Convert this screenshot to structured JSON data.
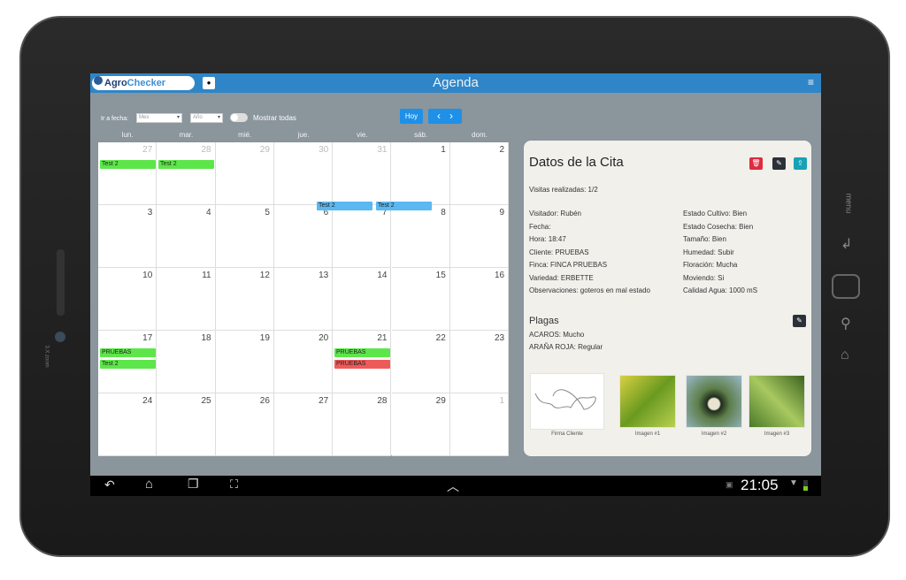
{
  "app": {
    "logo_prefix": "Agro",
    "logo_suffix": "Checker",
    "title": "Agenda",
    "menu_icon": "hamburger-icon",
    "user_icon": "user-icon"
  },
  "toolbar": {
    "goto_label": "Ir a fecha:",
    "month_placeholder": "Mes",
    "year_placeholder": "Año",
    "show_all_label": "Mostrar todas",
    "show_all_on": false,
    "today_label": "Hoy",
    "prev": "‹",
    "next": "›"
  },
  "calendar": {
    "weekdays": [
      "lun.",
      "mar.",
      "mié.",
      "jue.",
      "vie.",
      "sáb.",
      "dom."
    ],
    "weeks": [
      [
        "27",
        "28",
        "29",
        "30",
        "31",
        "1",
        "2"
      ],
      [
        "3",
        "4",
        "5",
        "6",
        "7",
        "8",
        "9"
      ],
      [
        "10",
        "11",
        "12",
        "13",
        "14",
        "15",
        "16"
      ],
      [
        "17",
        "18",
        "19",
        "20",
        "21",
        "22",
        "23"
      ],
      [
        "24",
        "25",
        "26",
        "27",
        "28",
        "29",
        "1"
      ]
    ],
    "events": [
      "Test 2",
      "Test 2",
      "Test 2",
      "Test 2",
      "PRUEBAS",
      "Test 2",
      "PRUEBAS",
      "PRUEBAS"
    ],
    "colors": {
      "green": "#5de64a",
      "blue": "#5bb8f0",
      "red": "#ee5a5a"
    }
  },
  "details": {
    "title": "Datos de la Cita",
    "visits": "Visitas realizadas: 1/2",
    "left": [
      "Visitador: Rubén",
      "Fecha:",
      "Hora: 18:47",
      "Cliente: PRUEBAS",
      "Finca: FINCA PRUEBAS",
      "Variedad: ERBETTE",
      "Observaciones: goteros en mal estado"
    ],
    "right": [
      "Estado Cultivo: Bien",
      "Estado Cosecha: Bien",
      "Tamaño: Bien",
      "Humedad: Subir",
      "Floración: Mucha",
      "Moviendo: Si",
      "Calidad Agua: 1000 mS"
    ],
    "pests_title": "Plagas",
    "pests": [
      "ACAROS: Mucho",
      "ARAÑA ROJA: Regular"
    ],
    "captions": [
      "Firma Cliente",
      "Imagen #1",
      "Imagen #2",
      "Imagen #3"
    ]
  },
  "statusbar": {
    "time": "21:05"
  },
  "device": {
    "side_label": "menu",
    "camera_label": "3.X zoom"
  }
}
